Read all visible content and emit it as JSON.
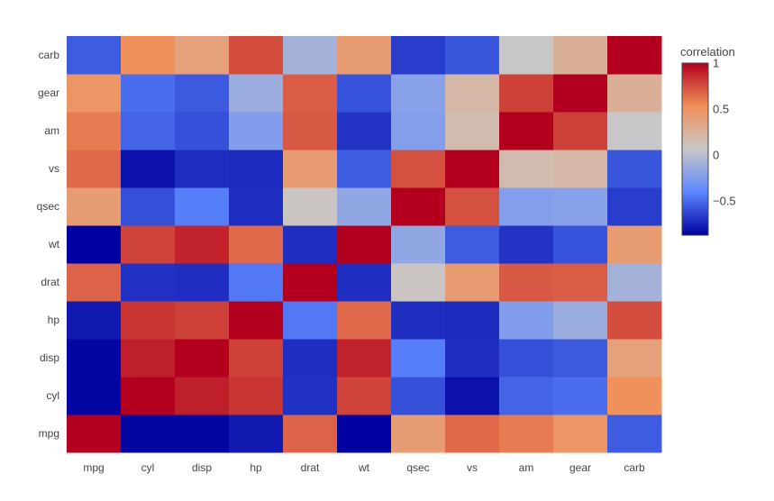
{
  "chart_data": {
    "type": "heatmap",
    "x_categories": [
      "mpg",
      "cyl",
      "disp",
      "hp",
      "drat",
      "wt",
      "qsec",
      "vs",
      "am",
      "gear",
      "carb"
    ],
    "y_categories": [
      "mpg",
      "cyl",
      "disp",
      "hp",
      "drat",
      "wt",
      "qsec",
      "vs",
      "am",
      "gear",
      "carb"
    ],
    "values": [
      [
        1.0,
        -0.85,
        -0.85,
        -0.78,
        0.68,
        -0.87,
        0.42,
        0.66,
        0.6,
        0.48,
        -0.55
      ],
      [
        -0.85,
        1.0,
        0.9,
        0.83,
        -0.7,
        0.78,
        -0.59,
        -0.81,
        -0.52,
        -0.49,
        0.53
      ],
      [
        -0.85,
        0.9,
        1.0,
        0.79,
        -0.71,
        0.89,
        -0.43,
        -0.71,
        -0.59,
        -0.56,
        0.39
      ],
      [
        -0.78,
        0.83,
        0.79,
        1.0,
        -0.45,
        0.66,
        -0.71,
        -0.72,
        -0.24,
        -0.13,
        0.75
      ],
      [
        0.68,
        -0.7,
        -0.71,
        -0.45,
        1.0,
        -0.71,
        0.09,
        0.44,
        0.71,
        0.7,
        -0.09
      ],
      [
        -0.87,
        0.78,
        0.89,
        0.66,
        -0.71,
        1.0,
        -0.17,
        -0.55,
        -0.69,
        -0.58,
        0.43
      ],
      [
        0.42,
        -0.59,
        -0.43,
        -0.71,
        0.09,
        -0.17,
        1.0,
        0.74,
        -0.23,
        -0.21,
        -0.66
      ],
      [
        0.66,
        -0.81,
        -0.71,
        -0.72,
        0.44,
        -0.55,
        0.74,
        1.0,
        0.17,
        0.21,
        -0.57
      ],
      [
        0.6,
        -0.52,
        -0.59,
        -0.24,
        0.71,
        -0.69,
        -0.23,
        0.17,
        1.0,
        0.79,
        0.06
      ],
      [
        0.48,
        -0.49,
        -0.56,
        -0.13,
        0.7,
        -0.58,
        -0.21,
        0.21,
        0.79,
        1.0,
        0.27
      ],
      [
        -0.55,
        0.53,
        0.39,
        0.75,
        -0.09,
        0.43,
        -0.66,
        -0.57,
        0.06,
        0.27,
        1.0
      ]
    ],
    "zmin": -0.87,
    "zmax": 1,
    "colorbar": {
      "title": "correlation",
      "ticks": [
        1,
        0.5,
        0,
        -0.5
      ],
      "tick_labels": [
        "1",
        "0.5",
        "0",
        "−0.5"
      ],
      "colorscale": [
        "#0000a0",
        "#5b86ff",
        "#c8c8c8",
        "#f0905a",
        "#b2001e"
      ]
    },
    "legend_position": "right"
  }
}
